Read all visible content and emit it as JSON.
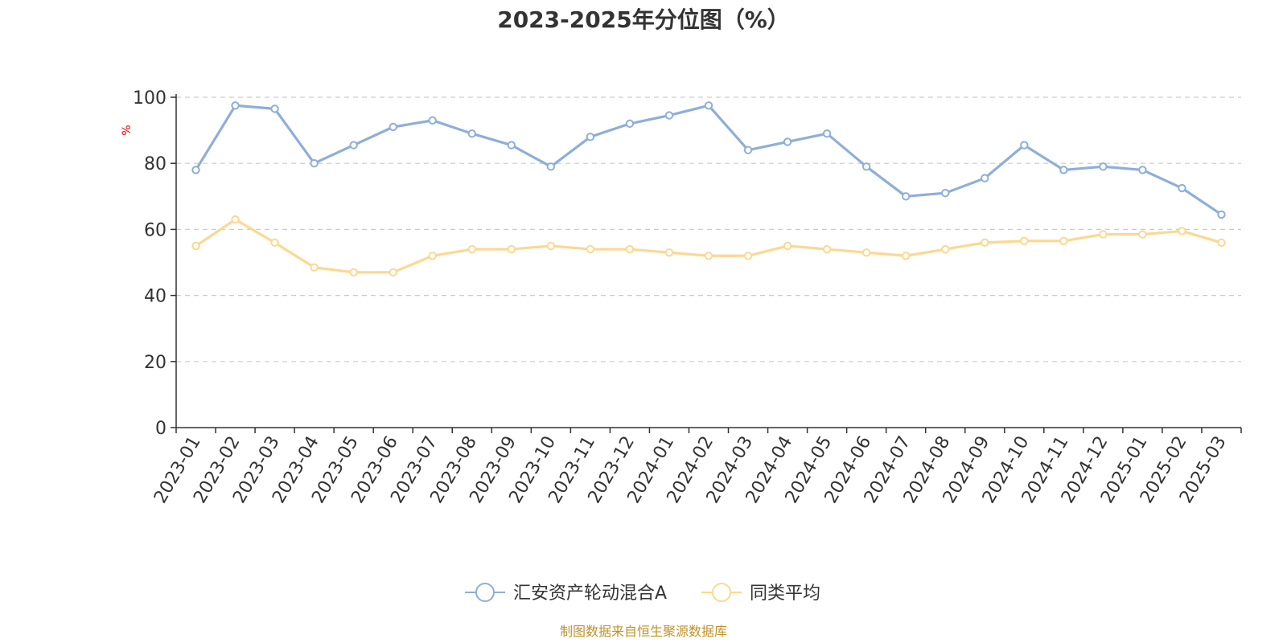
{
  "chart_data": {
    "type": "line",
    "title": "2023-2025年分位图（%）",
    "ylabel": "%",
    "xlabel": "",
    "ylim": [
      0,
      100
    ],
    "yticks": [
      0,
      20,
      40,
      60,
      80,
      100
    ],
    "grid": "horizontal-dashed",
    "legend_position": "bottom-center",
    "categories": [
      "2023-01",
      "2023-02",
      "2023-03",
      "2023-04",
      "2023-05",
      "2023-06",
      "2023-07",
      "2023-08",
      "2023-09",
      "2023-10",
      "2023-11",
      "2023-12",
      "2024-01",
      "2024-02",
      "2024-03",
      "2024-04",
      "2024-05",
      "2024-06",
      "2024-07",
      "2024-08",
      "2024-09",
      "2024-10",
      "2024-11",
      "2024-12",
      "2025-01",
      "2025-02",
      "2025-03"
    ],
    "series": [
      {
        "name": "汇安资产轮动混合A",
        "color": "#8eaedb",
        "values": [
          78,
          97.5,
          96.5,
          80,
          85.5,
          91,
          93,
          89,
          85.5,
          79,
          88,
          92,
          94.5,
          97.5,
          84,
          86.5,
          89,
          79,
          70,
          71,
          75.5,
          85.5,
          78,
          79,
          78,
          72.5,
          64.5
        ]
      },
      {
        "name": "同类平均",
        "color": "#fcd891",
        "values": [
          55,
          63,
          56,
          48.5,
          47,
          47,
          52,
          54,
          54,
          55,
          54,
          54,
          53,
          52,
          52,
          55,
          54,
          53,
          52,
          54,
          56,
          56.5,
          56.5,
          58.5,
          58.5,
          59.5,
          56
        ]
      }
    ]
  },
  "footer": {
    "source": "制图数据来自恒生聚源数据库"
  }
}
